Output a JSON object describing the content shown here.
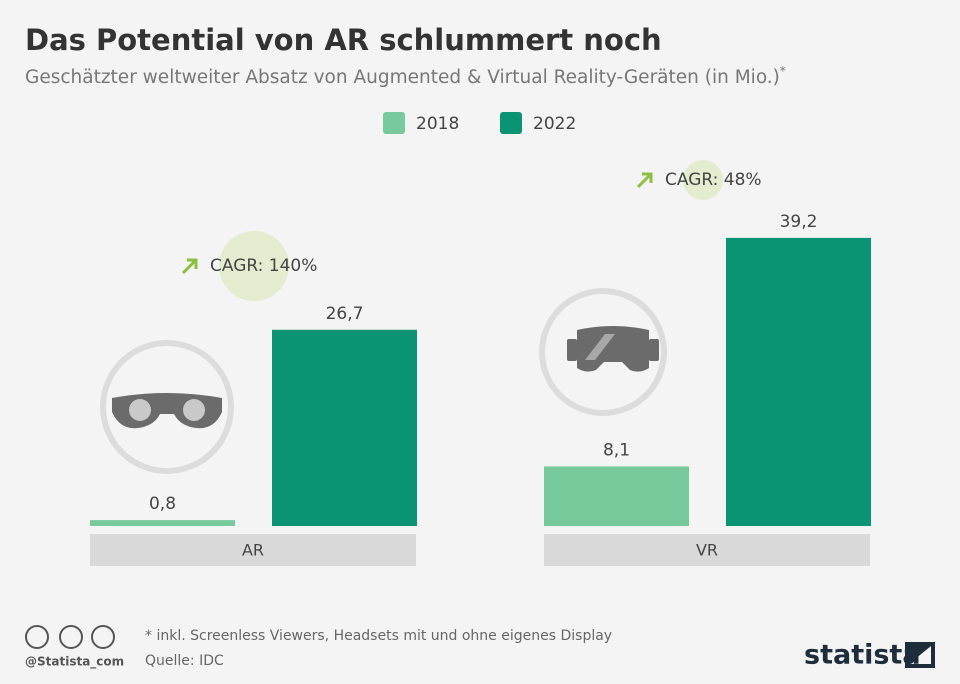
{
  "chart_data": {
    "type": "bar",
    "title": "Das Potential von AR schlummert noch",
    "subtitle": "Geschätzter weltweiter Absatz von Augmented & Virtual Reality-Geräten (in Mio.)",
    "subtitle_mark": "*",
    "categories": [
      "AR",
      "VR"
    ],
    "series": [
      {
        "name": "2018",
        "color": "#78c99b",
        "values": [
          0.8,
          8.1
        ],
        "value_labels": [
          "0,8",
          "8,1"
        ]
      },
      {
        "name": "2022",
        "color": "#0a9474",
        "values": [
          26.7,
          39.2
        ],
        "value_labels": [
          "26,7",
          "39,2"
        ]
      }
    ],
    "annotations": [
      "CAGR: 140%",
      "CAGR: 48%"
    ],
    "footnote": "* inkl. Screenless Viewers, Headsets mit und ohne eigenes Display",
    "source": "Quelle: IDC",
    "credit": "@Statista_com",
    "brand": "statista"
  }
}
